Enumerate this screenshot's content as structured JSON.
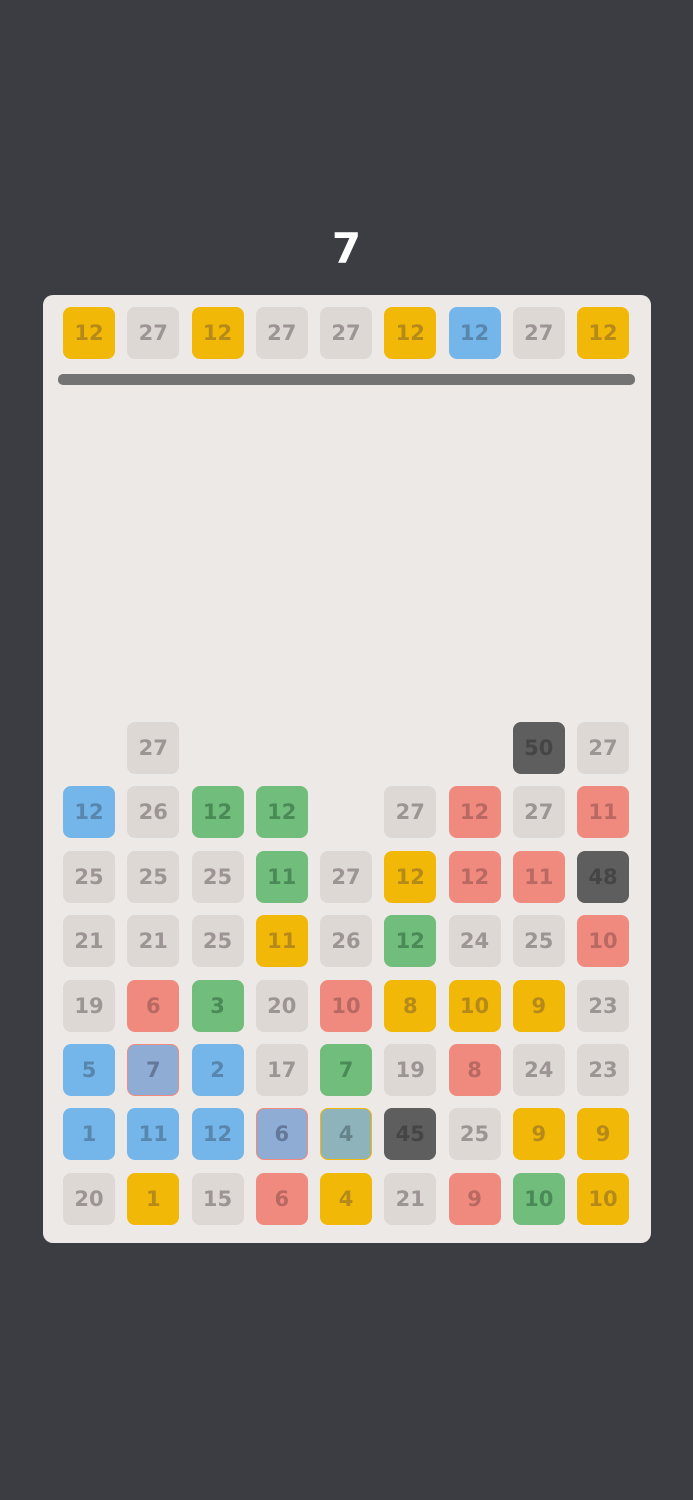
{
  "score": "7",
  "colors": {
    "g": "#ded8d5",
    "y": "#f2b807",
    "b": "#74b6ea",
    "G": "#70bd7c",
    "r": "#f08a7e",
    "d": "#5e5e5e",
    "p": "#8eacd4",
    "t": "#8eb3bb"
  },
  "queue": {
    "values": [
      12,
      27,
      12,
      27,
      27,
      12,
      12,
      27,
      12
    ],
    "colors": [
      "y",
      "g",
      "y",
      "g",
      "g",
      "y",
      "b",
      "g",
      "y"
    ]
  },
  "grid": {
    "values": [
      [
        null,
        27,
        null,
        null,
        null,
        null,
        null,
        50,
        27
      ],
      [
        12,
        26,
        12,
        12,
        null,
        27,
        12,
        27,
        11
      ],
      [
        25,
        25,
        25,
        11,
        27,
        12,
        12,
        11,
        48
      ],
      [
        21,
        21,
        25,
        11,
        26,
        12,
        24,
        25,
        10
      ],
      [
        19,
        6,
        3,
        20,
        10,
        8,
        10,
        9,
        23
      ],
      [
        5,
        7,
        2,
        17,
        7,
        19,
        8,
        24,
        23
      ],
      [
        1,
        11,
        12,
        6,
        4,
        45,
        25,
        9,
        9
      ],
      [
        20,
        1,
        15,
        6,
        4,
        21,
        9,
        10,
        10
      ]
    ],
    "colors": [
      [
        null,
        "g",
        null,
        null,
        null,
        null,
        null,
        "d",
        "g"
      ],
      [
        "b",
        "g",
        "G",
        "G",
        null,
        "g",
        "r",
        "g",
        "r"
      ],
      [
        "g",
        "g",
        "g",
        "G",
        "g",
        "y",
        "r",
        "r",
        "d"
      ],
      [
        "g",
        "g",
        "g",
        "y",
        "g",
        "G",
        "g",
        "g",
        "r"
      ],
      [
        "g",
        "r",
        "G",
        "g",
        "r",
        "y",
        "y",
        "y",
        "g"
      ],
      [
        "b",
        "p",
        "b",
        "g",
        "G",
        "g",
        "r",
        "g",
        "g"
      ],
      [
        "b",
        "b",
        "b",
        "p",
        "t",
        "d",
        "g",
        "y",
        "y"
      ],
      [
        "g",
        "y",
        "g",
        "r",
        "y",
        "g",
        "r",
        "G",
        "y"
      ]
    ]
  }
}
